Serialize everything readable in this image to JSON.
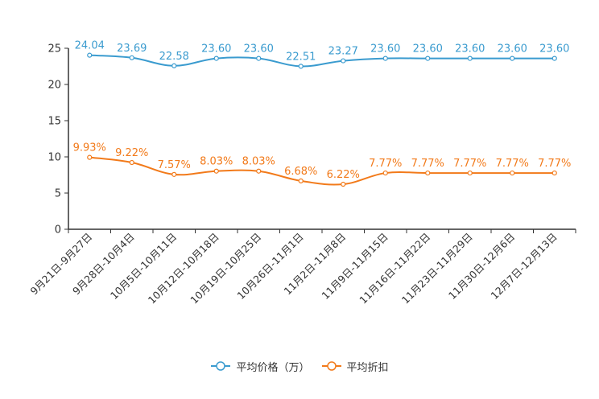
{
  "chart_data": {
    "type": "line",
    "title": "",
    "xlabel": "",
    "ylabel": "",
    "ylim": [
      0,
      25
    ],
    "yticks": [
      0,
      5,
      10,
      15,
      20,
      25
    ],
    "categories": [
      "9月21日-9月27日",
      "9月28日-10月4日",
      "10月5日-10月11日",
      "10月12日-10月18日",
      "10月19日-10月25日",
      "10月26日-11月1日",
      "11月2日-11月8日",
      "11月9日-11月15日",
      "11月16日-11月22日",
      "11月23日-11月29日",
      "11月30日-12月6日",
      "12月7日-12月13日"
    ],
    "series": [
      {
        "name": "平均价格（万）",
        "color": "#3a9bcf",
        "values": [
          24.04,
          23.69,
          22.58,
          23.6,
          23.6,
          22.51,
          23.27,
          23.6,
          23.6,
          23.6,
          23.6,
          23.6
        ],
        "labels": [
          "24.04",
          "23.69",
          "22.58",
          "23.60",
          "23.60",
          "22.51",
          "23.27",
          "23.60",
          "23.60",
          "23.60",
          "23.60",
          "23.60"
        ]
      },
      {
        "name": "平均折扣",
        "color": "#f27a1a",
        "values": [
          9.93,
          9.22,
          7.57,
          8.03,
          8.03,
          6.68,
          6.22,
          7.77,
          7.77,
          7.77,
          7.77,
          7.77
        ],
        "labels": [
          "9.93%",
          "9.22%",
          "7.57%",
          "8.03%",
          "8.03%",
          "6.68%",
          "6.22%",
          "7.77%",
          "7.77%",
          "7.77%",
          "7.77%",
          "7.77%"
        ]
      }
    ],
    "legend_position": "bottom-center",
    "grid": false
  }
}
